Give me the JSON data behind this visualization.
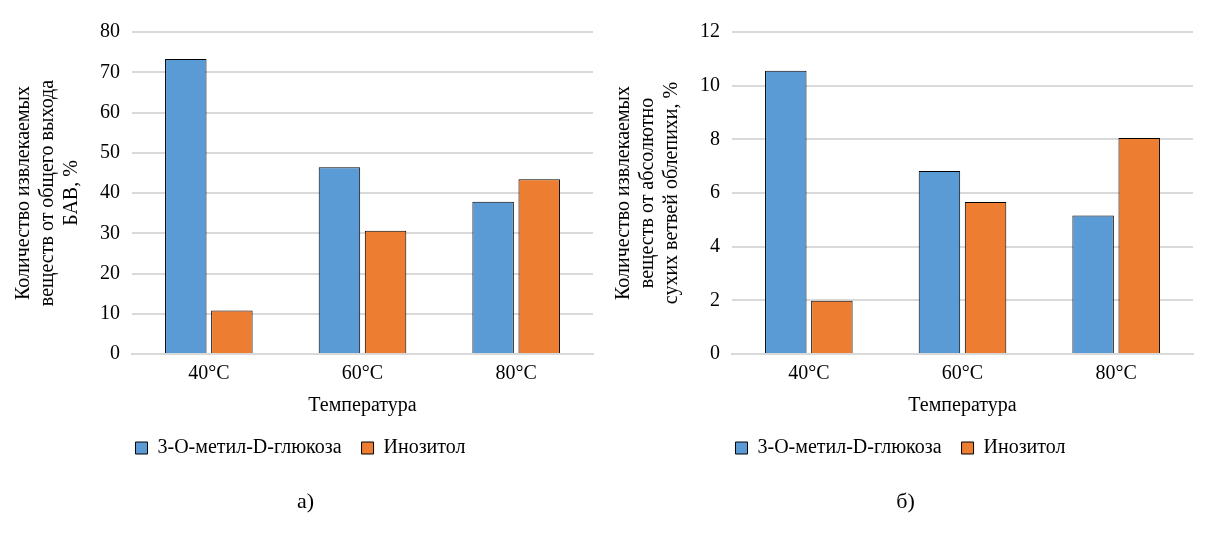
{
  "chart_data": [
    {
      "type": "bar",
      "categories": [
        "40°C",
        "60°C",
        "80°C"
      ],
      "xlabel": "Температура",
      "ylabel": "Количество извлекаемых веществ от общего выхода БАВ, %",
      "series": [
        {
          "name": "3-O-метил-D-глюкоза",
          "color": "#5b9bd5",
          "values": [
            73.3,
            46.4,
            37.8
          ]
        },
        {
          "name": "Инозитол",
          "color": "#ed7d31",
          "values": [
            10.8,
            30.6,
            43.4
          ]
        }
      ],
      "ylim": [
        0,
        80
      ],
      "yticks": [
        0,
        10,
        20,
        30,
        40,
        50,
        60,
        70,
        80
      ],
      "grid": "y",
      "legend": "bottom",
      "annotations": [
        "а)"
      ]
    },
    {
      "type": "bar",
      "categories": [
        "40°C",
        "60°C",
        "80°C"
      ],
      "xlabel": "Температура",
      "ylabel": "Количество извлекаемых веществ от абсолютно сухих ветвей облепихи, %",
      "series": [
        {
          "name": "3-O-метил-D-глюкоза",
          "color": "#5b9bd5",
          "values": [
            10.56,
            6.82,
            5.16
          ]
        },
        {
          "name": "Инозитол",
          "color": "#ed7d31",
          "values": [
            1.98,
            5.66,
            8.05
          ]
        }
      ],
      "ylim": [
        0,
        12
      ],
      "yticks": [
        0,
        2,
        4,
        6,
        8,
        10,
        12
      ],
      "grid": "y",
      "legend": "bottom",
      "annotations": [
        "б)"
      ]
    }
  ]
}
